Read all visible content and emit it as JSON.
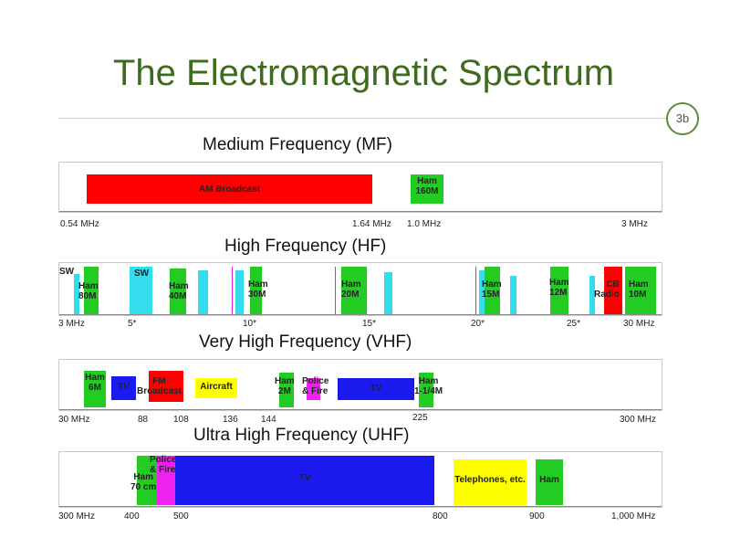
{
  "slide": {
    "title": "The Electromagnetic Spectrum",
    "page_number": "3b"
  },
  "mf": {
    "title": "Medium Frequency (MF)",
    "blocks": [
      {
        "label": "AM Broadcast",
        "color": "#ff0000"
      },
      {
        "label": "Ham\n160M",
        "color": "#22cc22"
      }
    ],
    "ticks": [
      "0.54 MHz",
      "1.64 MHz",
      "1.0 MHz",
      "3 MHz"
    ]
  },
  "hf": {
    "title": "High Frequency (HF)",
    "labels": {
      "sw1": "SW",
      "ham80": "Ham\n80M",
      "sw2": "SW",
      "ham40": "Ham\n40M",
      "ham30": "Ham\n30M",
      "ham20": "Ham\n20M",
      "ham15": "Ham\n15M",
      "ham12": "Ham\n12M",
      "cb": "CB\nRadio",
      "ham10": "Ham\n10M"
    },
    "ticks": [
      "3 MHz",
      "5*",
      "10*",
      "15*",
      "20*",
      "25*",
      "30 MHz"
    ]
  },
  "vhf": {
    "title": "Very High Frequency (VHF)",
    "labels": {
      "ham6": "Ham\n6M",
      "tv1": "TV",
      "fm": "FM\nBroadcast",
      "aircraft": "Aircraft",
      "ham2": "Ham\n2M",
      "police": "Police\n& Fire",
      "tv2": "TV",
      "ham114": "Ham\n1-1/4M"
    },
    "ticks": [
      "30 MHz",
      "88",
      "108",
      "136",
      "144",
      "225",
      "300 MHz"
    ]
  },
  "uhf": {
    "title": "Ultra High Frequency (UHF)",
    "labels": {
      "police": "Police\n& Fire",
      "ham70": "Ham\n70 cm",
      "tv": "TV",
      "phones": "Telephones, etc.",
      "ham": "Ham"
    },
    "ticks": [
      "300 MHz",
      "400",
      "500",
      "800",
      "900",
      "1,000 MHz"
    ]
  },
  "colors": {
    "green": "#22cc22",
    "cyan": "#33ddee",
    "red": "#ff0000",
    "blue": "#1a1aee",
    "magenta": "#ee22ee",
    "yellow": "#ffff00",
    "title_green": "#3f6b1e"
  }
}
